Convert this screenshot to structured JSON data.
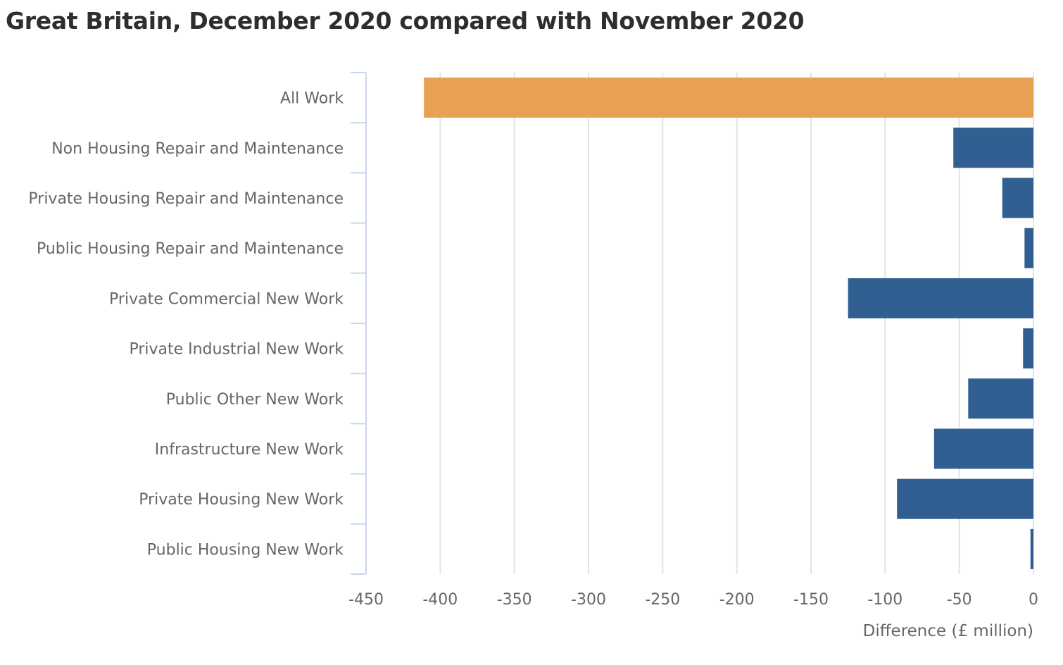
{
  "chart_data": {
    "type": "bar",
    "orientation": "horizontal",
    "title": "Great Britain, December 2020 compared with November 2020",
    "xlabel": "Difference (£ million)",
    "ylabel": "",
    "xlim": [
      -450,
      0
    ],
    "x_ticks": [
      -450,
      -400,
      -350,
      -300,
      -250,
      -200,
      -150,
      -100,
      -50,
      0
    ],
    "grid": "vertical",
    "legend": "none",
    "categories": [
      "All Work",
      "Non Housing Repair and Maintenance",
      "Private Housing Repair and Maintenance",
      "Public Housing Repair and Maintenance",
      "Private Commercial New Work",
      "Private Industrial New Work",
      "Public Other New Work",
      "Infrastructure New Work",
      "Private Housing New Work",
      "Public Housing New Work"
    ],
    "values": [
      -411,
      -54,
      -21,
      -6,
      -125,
      -7,
      -44,
      -67,
      -92,
      -2
    ],
    "bar_colors": [
      "#e8a154",
      "#315f91",
      "#315f91",
      "#315f91",
      "#315f91",
      "#315f91",
      "#315f91",
      "#315f91",
      "#315f91",
      "#315f91"
    ]
  }
}
